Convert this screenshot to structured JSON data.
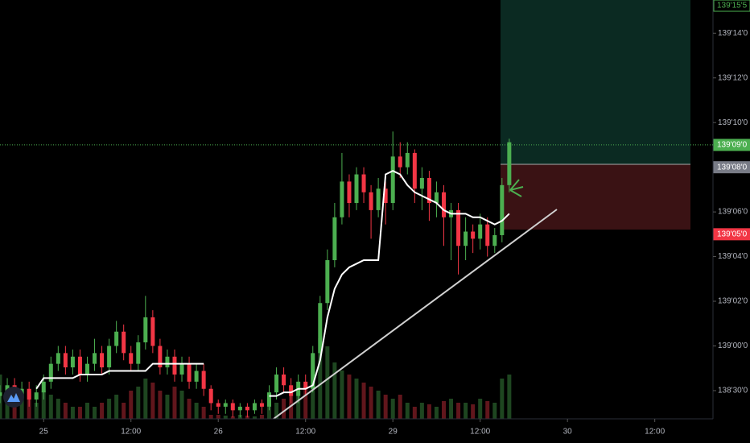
{
  "chart_data": {
    "type": "candlestick",
    "up_color": "#4caf50",
    "down_color": "#f23645",
    "vwap_color": "#ffffff",
    "x": [
      -6,
      -5,
      -4,
      -3,
      -2,
      -1,
      0,
      1,
      2,
      3,
      4,
      5,
      6,
      7,
      8,
      9,
      10,
      11,
      12,
      13,
      14,
      15,
      16,
      17,
      18,
      19,
      20,
      21,
      22,
      23,
      24,
      25,
      26,
      27,
      28,
      29,
      30,
      31,
      32,
      33,
      34,
      35,
      36,
      37,
      38,
      39,
      40,
      41,
      42,
      43,
      44,
      45,
      46,
      47,
      48,
      49,
      50,
      51,
      52,
      53,
      54,
      55,
      56,
      57,
      58,
      59,
      60,
      61,
      62,
      63,
      64
    ],
    "open": [
      138.93,
      138.935,
      138.945,
      138.93,
      138.94,
      138.925,
      138.935,
      138.95,
      138.975,
      138.99,
      138.97,
      138.985,
      138.96,
      138.975,
      138.99,
      138.97,
      139.0,
      139.02,
      138.99,
      138.975,
      139.005,
      139.04,
      139.0,
      138.97,
      138.985,
      138.96,
      138.975,
      138.95,
      138.965,
      138.94,
      138.92,
      138.915,
      138.92,
      138.91,
      138.915,
      138.91,
      138.92,
      138.915,
      138.935,
      138.96,
      138.945,
      138.93,
      138.95,
      138.94,
      138.99,
      139.06,
      139.12,
      139.18,
      139.23,
      139.2,
      139.24,
      139.215,
      139.19,
      139.22,
      139.2,
      139.265,
      139.25,
      139.27,
      139.22,
      139.235,
      139.2,
      139.215,
      139.18,
      139.19,
      139.14,
      139.16,
      139.15,
      139.17,
      139.14,
      139.155,
      139.225
    ],
    "high": [
      138.945,
      138.955,
      138.955,
      138.95,
      138.95,
      138.945,
      138.96,
      138.985,
      139.0,
      139.0,
      138.995,
      138.995,
      138.985,
      139.01,
      139.0,
      139.01,
      139.035,
      139.03,
      139.0,
      139.015,
      139.07,
      139.05,
      139.01,
      138.995,
      138.995,
      138.985,
      138.985,
      138.975,
      138.975,
      138.945,
      138.925,
      138.925,
      138.925,
      138.92,
      138.92,
      138.925,
      138.925,
      138.945,
      138.97,
      138.97,
      138.955,
      138.96,
      138.96,
      139.0,
      139.07,
      139.135,
      139.2,
      139.27,
      139.24,
      139.25,
      139.25,
      139.225,
      139.235,
      139.23,
      139.3,
      139.285,
      139.285,
      139.275,
      139.25,
      139.245,
      139.23,
      139.225,
      139.2,
      139.2,
      139.18,
      139.17,
      139.185,
      139.18,
      139.165,
      139.235,
      139.29
    ],
    "low": [
      138.92,
      138.925,
      138.92,
      138.92,
      138.915,
      138.915,
      138.925,
      138.94,
      138.965,
      138.96,
      138.96,
      138.95,
      138.95,
      138.965,
      138.96,
      138.96,
      138.99,
      138.98,
      138.965,
      138.965,
      138.995,
      138.99,
      138.96,
      138.96,
      138.95,
      138.95,
      138.94,
      138.94,
      138.93,
      138.91,
      138.905,
      138.905,
      138.9,
      138.9,
      138.9,
      138.905,
      138.905,
      138.91,
      138.925,
      138.935,
      138.92,
      138.92,
      138.93,
      138.935,
      138.98,
      139.05,
      139.11,
      139.17,
      139.18,
      139.19,
      139.2,
      139.15,
      139.18,
      139.17,
      139.19,
      139.235,
      139.24,
      139.2,
      139.19,
      139.175,
      139.18,
      139.14,
      139.12,
      139.1,
      139.12,
      139.13,
      139.135,
      139.125,
      139.13,
      139.145,
      139.215
    ],
    "close": [
      138.935,
      138.945,
      138.93,
      138.94,
      138.925,
      138.935,
      138.95,
      138.975,
      138.99,
      138.97,
      138.985,
      138.96,
      138.975,
      138.99,
      138.97,
      139.0,
      139.02,
      138.99,
      138.975,
      139.005,
      139.04,
      139.0,
      138.97,
      138.985,
      138.96,
      138.975,
      138.95,
      138.965,
      138.94,
      138.92,
      138.915,
      138.92,
      138.91,
      138.915,
      138.91,
      138.92,
      138.915,
      138.935,
      138.96,
      138.945,
      138.93,
      138.95,
      138.94,
      138.99,
      139.06,
      139.12,
      139.18,
      139.23,
      139.2,
      139.24,
      139.215,
      139.19,
      139.22,
      139.2,
      139.265,
      139.25,
      139.27,
      139.22,
      139.235,
      139.2,
      139.215,
      139.18,
      139.19,
      139.14,
      139.16,
      139.15,
      139.17,
      139.14,
      139.155,
      139.225,
      139.285
    ],
    "volume": [
      55,
      40,
      30,
      25,
      35,
      20,
      35,
      30,
      25,
      20,
      15,
      15,
      20,
      15,
      20,
      25,
      30,
      20,
      35,
      40,
      50,
      45,
      35,
      30,
      40,
      35,
      25,
      20,
      15,
      5,
      5,
      4,
      3,
      5,
      4,
      3,
      5,
      15,
      20,
      25,
      30,
      35,
      40,
      80,
      100,
      90,
      70,
      60,
      55,
      50,
      45,
      40,
      35,
      30,
      25,
      30,
      20,
      15,
      20,
      18,
      15,
      22,
      25,
      20,
      20,
      18,
      25,
      22,
      20,
      50,
      55
    ],
    "vwap": [
      null,
      null,
      null,
      null,
      null,
      138.94,
      138.955,
      138.955,
      138.955,
      138.955,
      138.955,
      138.96,
      138.96,
      138.96,
      138.96,
      138.965,
      138.965,
      138.965,
      138.965,
      138.965,
      138.965,
      138.975,
      138.975,
      138.975,
      138.975,
      138.975,
      138.975,
      138.975,
      138.975,
      null,
      null,
      null,
      null,
      null,
      null,
      null,
      null,
      138.93,
      138.93,
      138.935,
      138.935,
      138.94,
      138.94,
      138.945,
      138.98,
      139.04,
      139.08,
      139.1,
      139.11,
      139.115,
      139.12,
      139.12,
      139.12,
      139.24,
      139.245,
      139.24,
      139.225,
      139.215,
      139.21,
      139.205,
      139.2,
      139.19,
      139.185,
      139.185,
      139.185,
      139.18,
      139.18,
      139.175,
      139.17,
      139.175,
      139.185
    ],
    "xlim": [
      -6,
      92
    ],
    "xticks": [
      {
        "value": 0,
        "label": "25"
      },
      {
        "value": 12,
        "label": "12:00"
      },
      {
        "value": 24,
        "label": "26"
      },
      {
        "value": 36,
        "label": "12:00"
      },
      {
        "value": 48,
        "label": "29"
      },
      {
        "value": 60,
        "label": "12:00"
      },
      {
        "value": 72,
        "label": "30"
      },
      {
        "value": 84,
        "label": "12:00"
      }
    ],
    "ylim": [
      138.898,
      139.484
    ],
    "yticks": [
      {
        "value": 139.4375,
        "label": "139'14'0"
      },
      {
        "value": 139.375,
        "label": "139'12'0"
      },
      {
        "value": 139.3125,
        "label": "139'10'0"
      },
      {
        "value": 139.1875,
        "label": "139'06'0"
      },
      {
        "value": 139.125,
        "label": "139'04'0"
      },
      {
        "value": 139.0625,
        "label": "139'02'0"
      },
      {
        "value": 139.0,
        "label": "139'00'0"
      },
      {
        "value": 138.9375,
        "label": "138'30'0"
      }
    ],
    "price_markers": [
      {
        "value": 139.484,
        "label": "139'15'5",
        "color": "#4caf50",
        "style": "outline"
      },
      {
        "value": 139.28125,
        "label": "139'09'0",
        "color": "#4caf50",
        "style": "filled",
        "dotted": true
      },
      {
        "value": 139.25,
        "label": "139'08'0",
        "color": "#787b86",
        "style": "filled"
      },
      {
        "value": 139.15625,
        "label": "139'05'0",
        "color": "#f23645",
        "style": "filled"
      }
    ]
  }
}
